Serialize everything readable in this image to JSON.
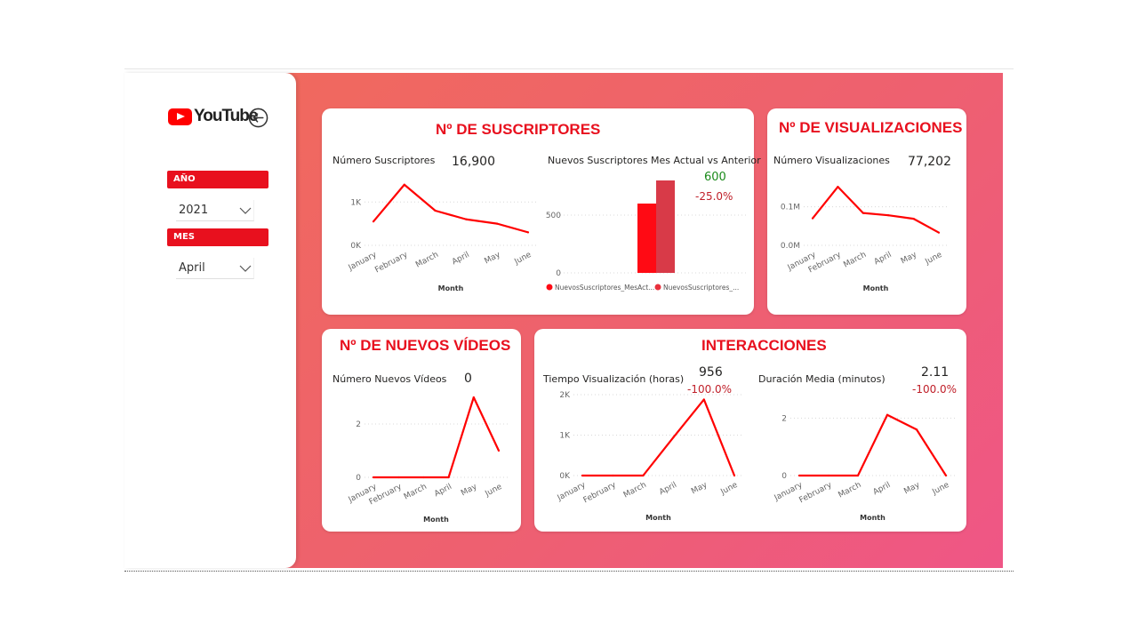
{
  "sidebar": {
    "logo_text": "YouTube",
    "year_filter": {
      "label": "AÑO",
      "value": "2021"
    },
    "month_filter": {
      "label": "MES",
      "value": "April"
    }
  },
  "colors": {
    "accent": "#e8101e",
    "line": "#ff0000",
    "positive": "#1a8a1a",
    "negative": "#c0202a"
  },
  "suscriptores": {
    "title": "Nº DE SUSCRIPTORES",
    "kpi_label": "Número Suscriptores",
    "kpi_value": "16,900",
    "bar_title": "Nuevos Suscriptores Mes Actual vs Anterior",
    "bar_kpi_value": "600",
    "bar_kpi_change": "-25.0%",
    "legend": [
      "NuevosSuscriptores_MesAct...",
      "NuevosSuscriptores_..."
    ]
  },
  "visualizaciones": {
    "title": "Nº DE VISUALIZACIONES",
    "kpi_label": "Número Visualizaciones",
    "kpi_value": "77,202"
  },
  "videos": {
    "title": "Nº DE NUEVOS VÍDEOS",
    "kpi_label": "Número Nuevos Vídeos",
    "kpi_value": "0"
  },
  "interacciones": {
    "title": "INTERACCIONES",
    "tiempo_label": "Tiempo Visualización (horas)",
    "tiempo_value": "956",
    "tiempo_change": "-100.0%",
    "duracion_label": "Duración Media (minutos)",
    "duracion_value": "2.11",
    "duracion_change": "-100.0%"
  },
  "chart_data": [
    {
      "id": "suscriptores-line",
      "type": "line",
      "categories": [
        "January",
        "February",
        "March",
        "April",
        "May",
        "June"
      ],
      "values": [
        550,
        1400,
        800,
        600,
        500,
        300
      ],
      "yticks": [
        "1K",
        "0K"
      ],
      "ytick_values": [
        1000,
        0
      ],
      "ylim": [
        0,
        1600
      ],
      "xlabel": "Month"
    },
    {
      "id": "suscriptores-bar",
      "type": "bar",
      "categories": [
        "NuevosSuscriptores_MesAct...",
        "NuevosSuscriptores_..."
      ],
      "values": [
        600,
        800
      ],
      "series_colors": [
        "#ff0a14",
        "#d83a48"
      ],
      "yticks": [
        "500",
        "0"
      ],
      "ytick_values": [
        500,
        0
      ],
      "ylim": [
        0,
        900
      ]
    },
    {
      "id": "visualizaciones-line",
      "type": "line",
      "categories": [
        "January",
        "February",
        "March",
        "April",
        "May",
        "June"
      ],
      "values": [
        70000,
        152000,
        84000,
        78000,
        69000,
        33000
      ],
      "yticks": [
        "0.1M",
        "0.0M"
      ],
      "ytick_values": [
        100000,
        0
      ],
      "ylim": [
        0,
        180000
      ],
      "xlabel": "Month"
    },
    {
      "id": "videos-line",
      "type": "line",
      "categories": [
        "January",
        "February",
        "March",
        "April",
        "May",
        "June"
      ],
      "values": [
        0,
        0,
        0,
        0,
        3,
        1
      ],
      "yticks": [
        "2",
        "0"
      ],
      "ytick_values": [
        2,
        0
      ],
      "ylim": [
        0,
        3.3
      ],
      "xlabel": "Month"
    },
    {
      "id": "tiempo-line",
      "type": "line",
      "categories": [
        "January",
        "February",
        "March",
        "April",
        "May",
        "June"
      ],
      "values": [
        0,
        0,
        0,
        950,
        1880,
        0
      ],
      "yticks": [
        "2K",
        "1K",
        "0K"
      ],
      "ytick_values": [
        2000,
        1000,
        0
      ],
      "ylim": [
        0,
        2000
      ],
      "xlabel": "Month"
    },
    {
      "id": "duracion-line",
      "type": "line",
      "categories": [
        "January",
        "February",
        "March",
        "April",
        "May",
        "June"
      ],
      "values": [
        0,
        0,
        0,
        2.11,
        1.6,
        0
      ],
      "yticks": [
        "2",
        "0"
      ],
      "ytick_values": [
        2,
        0
      ],
      "ylim": [
        0,
        3
      ],
      "xlabel": "Month"
    }
  ]
}
